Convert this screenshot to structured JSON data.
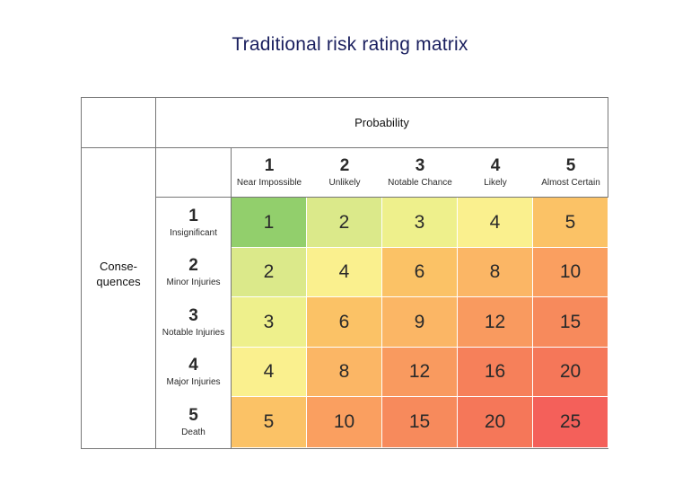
{
  "title": "Traditional risk rating matrix",
  "probability_label": "Probability",
  "consequences_label_line1": "Conse-",
  "consequences_label_line2": "quences",
  "probability_levels": [
    {
      "num": "1",
      "label": "Near Impossible"
    },
    {
      "num": "2",
      "label": "Unlikely"
    },
    {
      "num": "3",
      "label": "Notable Chance"
    },
    {
      "num": "4",
      "label": "Likely"
    },
    {
      "num": "5",
      "label": "Almost Certain"
    }
  ],
  "consequence_levels": [
    {
      "num": "1",
      "label": "Insignificant"
    },
    {
      "num": "2",
      "label": "Minor Injuries"
    },
    {
      "num": "3",
      "label": "Notable Injuries"
    },
    {
      "num": "4",
      "label": "Major Injuries"
    },
    {
      "num": "5",
      "label": "Death"
    }
  ],
  "matrix": [
    [
      "1",
      "2",
      "3",
      "4",
      "5"
    ],
    [
      "2",
      "4",
      "6",
      "8",
      "10"
    ],
    [
      "3",
      "6",
      "9",
      "12",
      "15"
    ],
    [
      "4",
      "8",
      "12",
      "16",
      "20"
    ],
    [
      "5",
      "10",
      "15",
      "20",
      "25"
    ]
  ],
  "colors": {
    "1": "#92cf6c",
    "2": "#dbe98a",
    "3": "#eef08c",
    "4": "#faf08e",
    "5": "#fbc266",
    "6": "#fbc266",
    "8": "#fbb665",
    "9": "#fbb665",
    "10": "#fa9f60",
    "12": "#f99a5f",
    "15": "#f78a5c",
    "16": "#f6805a",
    "20": "#f57759",
    "25": "#f4605a"
  }
}
